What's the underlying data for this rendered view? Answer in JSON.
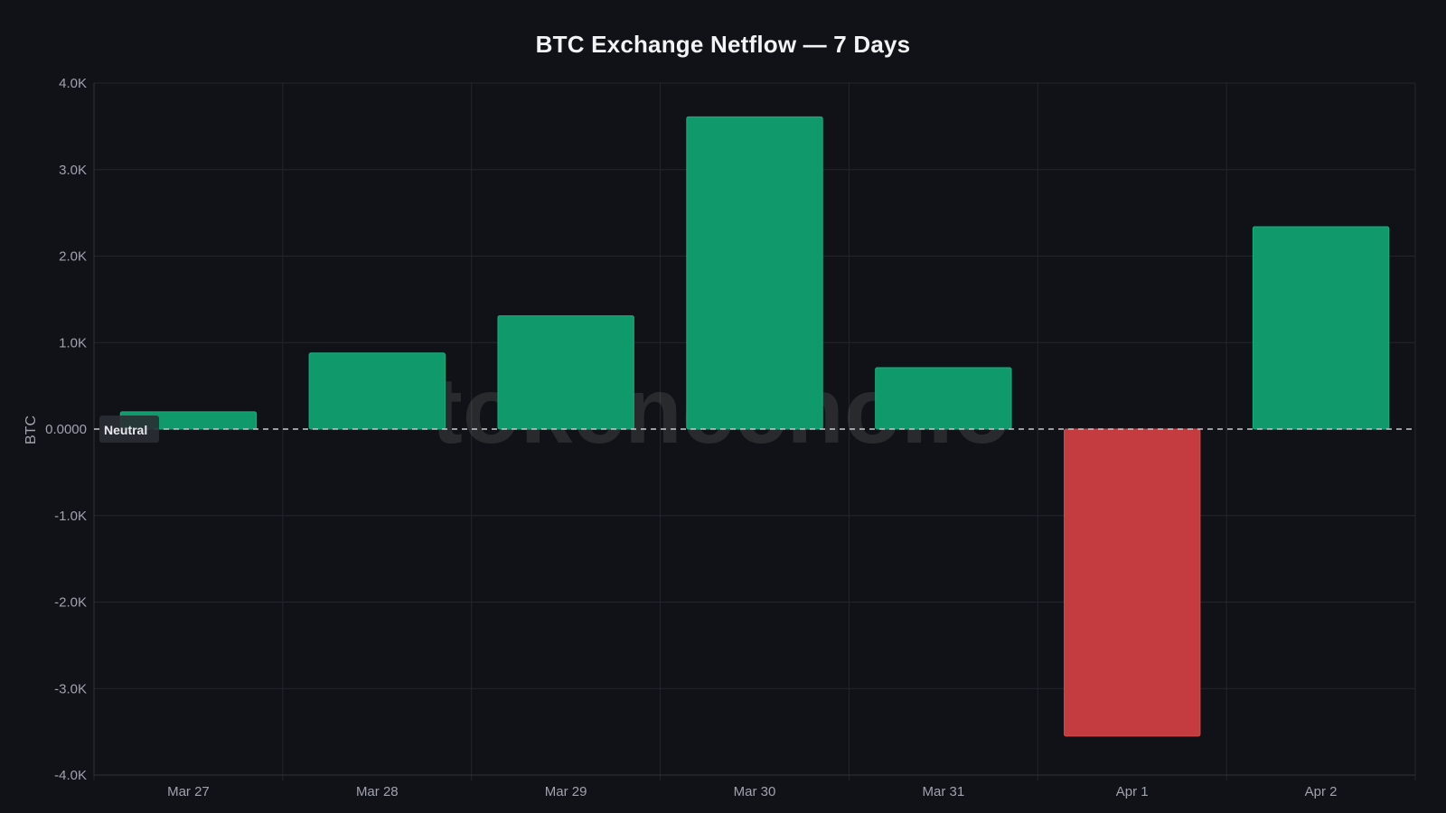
{
  "chart_data": {
    "type": "bar",
    "title": "BTC Exchange Netflow — 7 Days",
    "ylabel": "BTC",
    "xlabel": "",
    "categories": [
      "Mar 27",
      "Mar 28",
      "Mar 29",
      "Mar 30",
      "Mar 31",
      "Apr 1",
      "Apr 2"
    ],
    "values": [
      200,
      880,
      1310,
      3610,
      710,
      -3550,
      2340
    ],
    "ylim": [
      -4000,
      4000
    ],
    "yticks": [
      {
        "value": 4000,
        "label": "4.0K"
      },
      {
        "value": 3000,
        "label": "3.0K"
      },
      {
        "value": 2000,
        "label": "2.0K"
      },
      {
        "value": 1000,
        "label": "1.0K"
      },
      {
        "value": 0,
        "label": "0.0000"
      },
      {
        "value": -1000,
        "label": "-1.0K"
      },
      {
        "value": -2000,
        "label": "-2.0K"
      },
      {
        "value": -3000,
        "label": "-3.0K"
      },
      {
        "value": -4000,
        "label": "-4.0K"
      }
    ],
    "grid": true,
    "reference_line": {
      "value": 0,
      "label": "Neutral",
      "style": "dashed"
    },
    "watermark": "tokenecho.io",
    "colors": {
      "positive": "#109a6b",
      "negative": "#c43c3f",
      "background": "#111217",
      "grid": "#23262d",
      "text": "#9ea3ad"
    }
  }
}
